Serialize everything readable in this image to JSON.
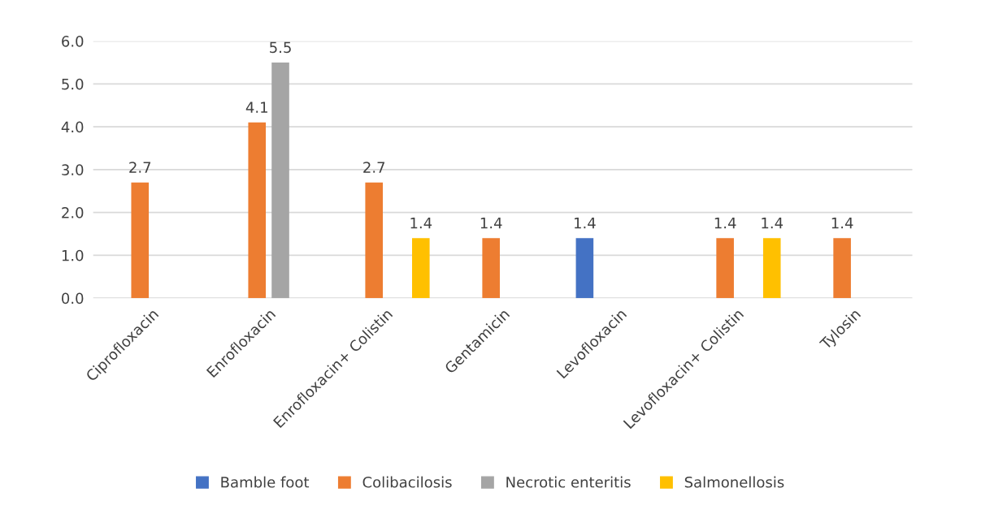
{
  "chart_data": {
    "type": "bar",
    "categories": [
      "Ciprofloxacin",
      "Enrofloxacin",
      "Enrofloxacin+ Colistin",
      "Gentamicin",
      "Levofloxacin",
      "Levofloxacin+ Colistin",
      "Tylosin"
    ],
    "series": [
      {
        "name": "Bamble foot",
        "color": "#4472c4",
        "values": [
          0,
          0,
          0,
          0,
          1.4,
          0,
          0
        ],
        "value_labels": [
          null,
          null,
          null,
          null,
          "1.4",
          null,
          null
        ]
      },
      {
        "name": "Colibacilosis",
        "color": "#ed7d31",
        "values": [
          2.7,
          4.1,
          2.7,
          1.4,
          0,
          1.4,
          1.4
        ],
        "value_labels": [
          "2.7",
          "4.1",
          "2.7",
          "1.4",
          null,
          "1.4",
          "1.4"
        ]
      },
      {
        "name": "Necrotic enteritis",
        "color": "#a5a5a5",
        "values": [
          0,
          5.5,
          0,
          0,
          0,
          0,
          0
        ],
        "value_labels": [
          null,
          "5.5",
          null,
          null,
          null,
          null,
          null
        ]
      },
      {
        "name": "Salmonellosis",
        "color": "#ffc000",
        "values": [
          0,
          0,
          1.4,
          0,
          0,
          1.4,
          0
        ],
        "value_labels": [
          null,
          null,
          "1.4",
          null,
          null,
          "1.4",
          null
        ]
      }
    ],
    "ylim": [
      0,
      6
    ],
    "yticks": [
      {
        "value": 0,
        "label": "0.0"
      },
      {
        "value": 1,
        "label": "1.0"
      },
      {
        "value": 2,
        "label": "2.0"
      },
      {
        "value": 3,
        "label": "3.0"
      },
      {
        "value": 4,
        "label": "4.0"
      },
      {
        "value": 5,
        "label": "5.0"
      },
      {
        "value": 6,
        "label": "6.0"
      }
    ],
    "grid": "y",
    "legend": "bottom"
  }
}
